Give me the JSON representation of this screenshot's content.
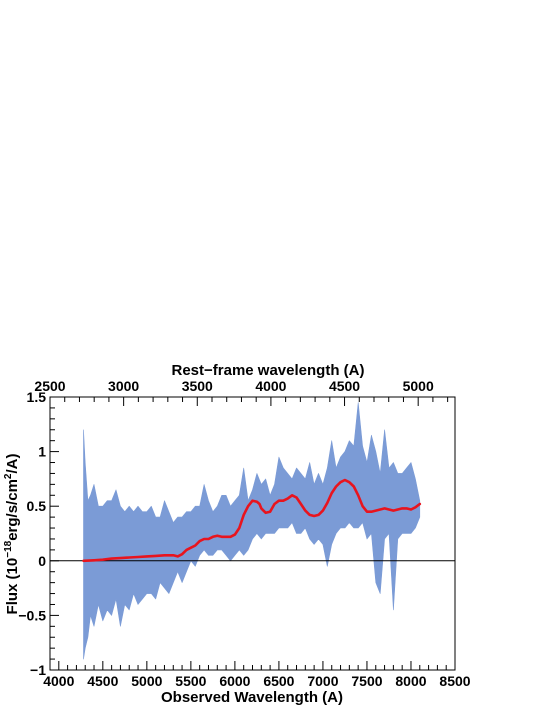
{
  "chart_data": {
    "type": "line",
    "title": "",
    "xlabel": "Observed Wavelength (A)",
    "ylabel_parts": {
      "pre": "Flux (10",
      "exp1": "−18",
      "mid": "erg/s/cm",
      "exp2": "2",
      "post": "/A)"
    },
    "top_axis_label": "Rest−frame wavelength (A)",
    "xlim": [
      3900,
      8500
    ],
    "ylim": [
      -1,
      1.5
    ],
    "rest_frame_lim": [
      2500,
      5250
    ],
    "x_ticks": [
      4000,
      4500,
      5000,
      5500,
      6000,
      6500,
      7000,
      7500,
      8000,
      8500
    ],
    "y_ticks": [
      -1,
      -0.5,
      0,
      0.5,
      1,
      1.5
    ],
    "y_tick_labels": [
      "−1",
      "−0.5",
      "0",
      "0.5",
      "1",
      "1.5"
    ],
    "top_ticks": [
      2500,
      3000,
      3500,
      4000,
      4500,
      5000
    ],
    "zero_line": 0,
    "grid": false,
    "legend": "none",
    "colors": {
      "spectrum_band": "#7b9bd6",
      "smooth_model": "#e8141e",
      "axes": "#000000"
    },
    "series": [
      {
        "role": "spectrum-band",
        "x": [
          4280,
          4300,
          4330,
          4360,
          4400,
          4450,
          4500,
          4550,
          4600,
          4650,
          4700,
          4750,
          4800,
          4850,
          4900,
          4950,
          5000,
          5050,
          5100,
          5150,
          5200,
          5250,
          5300,
          5350,
          5400,
          5450,
          5500,
          5550,
          5600,
          5650,
          5700,
          5750,
          5800,
          5850,
          5900,
          5950,
          6000,
          6050,
          6100,
          6150,
          6200,
          6250,
          6300,
          6350,
          6400,
          6450,
          6500,
          6550,
          6600,
          6650,
          6700,
          6750,
          6800,
          6850,
          6900,
          6950,
          7000,
          7050,
          7100,
          7150,
          7200,
          7250,
          7300,
          7350,
          7400,
          7450,
          7500,
          7550,
          7600,
          7650,
          7700,
          7750,
          7800,
          7850,
          7900,
          7950,
          8000,
          8050,
          8100
        ],
        "upper": [
          1.2,
          0.9,
          0.55,
          0.6,
          0.7,
          0.5,
          0.5,
          0.55,
          0.55,
          0.65,
          0.5,
          0.45,
          0.5,
          0.45,
          0.5,
          0.45,
          0.45,
          0.5,
          0.4,
          0.4,
          0.55,
          0.45,
          0.35,
          0.4,
          0.4,
          0.45,
          0.45,
          0.5,
          0.5,
          0.7,
          0.55,
          0.45,
          0.5,
          0.6,
          0.6,
          0.5,
          0.55,
          0.6,
          0.85,
          0.55,
          0.65,
          0.8,
          0.7,
          0.75,
          0.6,
          0.7,
          0.95,
          0.85,
          0.8,
          0.75,
          0.85,
          0.8,
          0.75,
          0.9,
          0.7,
          0.8,
          0.7,
          0.85,
          1.1,
          0.85,
          0.95,
          1.0,
          1.1,
          1.05,
          1.45,
          1.05,
          0.9,
          1.15,
          1.0,
          0.8,
          1.2,
          0.85,
          0.9,
          0.8,
          0.8,
          0.85,
          0.9,
          0.75,
          0.55
        ],
        "lower": [
          -0.9,
          -0.8,
          -0.7,
          -0.5,
          -0.6,
          -0.4,
          -0.55,
          -0.45,
          -0.5,
          -0.35,
          -0.6,
          -0.4,
          -0.45,
          -0.3,
          -0.4,
          -0.35,
          -0.3,
          -0.3,
          -0.35,
          -0.2,
          -0.25,
          -0.3,
          -0.2,
          -0.1,
          -0.2,
          -0.1,
          0.0,
          -0.05,
          0.05,
          0.1,
          0.05,
          0.05,
          0.1,
          0.1,
          0.05,
          0.0,
          0.05,
          0.1,
          0.05,
          0.1,
          0.2,
          0.25,
          0.2,
          0.25,
          0.25,
          0.25,
          0.3,
          0.3,
          0.3,
          0.35,
          0.25,
          0.25,
          0.3,
          0.2,
          0.15,
          0.2,
          0.15,
          -0.05,
          0.15,
          0.25,
          0.3,
          0.3,
          0.35,
          0.3,
          0.3,
          0.35,
          0.2,
          0.25,
          -0.2,
          -0.3,
          0.2,
          0.25,
          -0.45,
          0.2,
          0.25,
          0.25,
          0.25,
          0.3,
          0.4
        ]
      },
      {
        "role": "smooth-model",
        "x": [
          4280,
          4400,
          4500,
          4600,
          4700,
          4800,
          4900,
          5000,
          5100,
          5200,
          5300,
          5350,
          5400,
          5450,
          5500,
          5550,
          5600,
          5650,
          5700,
          5750,
          5800,
          5850,
          5900,
          5950,
          6000,
          6050,
          6100,
          6150,
          6200,
          6250,
          6280,
          6300,
          6350,
          6400,
          6450,
          6500,
          6550,
          6600,
          6650,
          6700,
          6750,
          6800,
          6850,
          6900,
          6950,
          7000,
          7050,
          7100,
          7150,
          7200,
          7250,
          7300,
          7350,
          7400,
          7450,
          7500,
          7550,
          7600,
          7650,
          7700,
          7750,
          7800,
          7850,
          7900,
          7950,
          8000,
          8050,
          8100
        ],
        "y": [
          0.0,
          0.005,
          0.01,
          0.02,
          0.025,
          0.03,
          0.035,
          0.04,
          0.045,
          0.05,
          0.05,
          0.04,
          0.06,
          0.1,
          0.12,
          0.14,
          0.18,
          0.2,
          0.2,
          0.22,
          0.23,
          0.22,
          0.22,
          0.22,
          0.24,
          0.3,
          0.42,
          0.5,
          0.55,
          0.54,
          0.52,
          0.48,
          0.44,
          0.45,
          0.52,
          0.55,
          0.55,
          0.57,
          0.6,
          0.58,
          0.52,
          0.46,
          0.42,
          0.41,
          0.42,
          0.46,
          0.53,
          0.62,
          0.68,
          0.72,
          0.74,
          0.72,
          0.68,
          0.6,
          0.5,
          0.45,
          0.45,
          0.46,
          0.47,
          0.48,
          0.47,
          0.46,
          0.47,
          0.48,
          0.48,
          0.47,
          0.49,
          0.52
        ]
      }
    ]
  }
}
